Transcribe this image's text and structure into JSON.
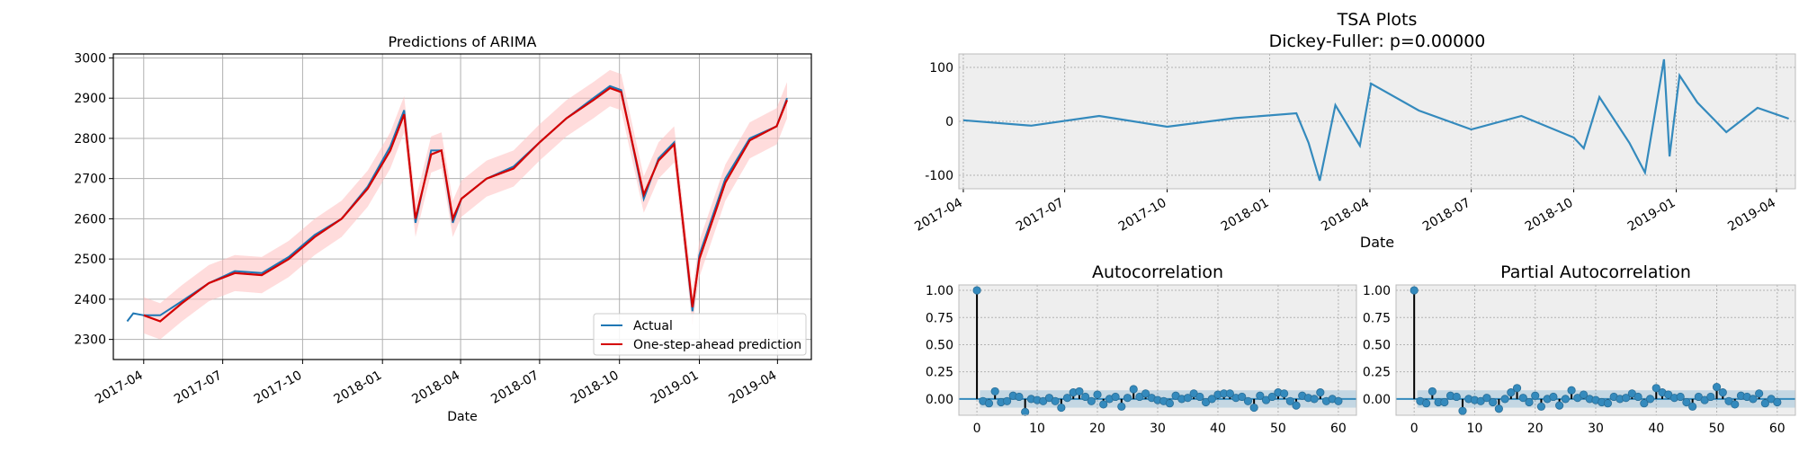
{
  "chart_data": [
    {
      "id": "arima",
      "type": "line",
      "title": "Predictions of ARIMA",
      "xlabel": "Date",
      "ylabel": "",
      "xlim": [
        "2017-02-25",
        "2019-05-10"
      ],
      "ylim": [
        2250,
        3010
      ],
      "grid": true,
      "legend": "lower-right",
      "x_ticks": [
        "2017-04-01",
        "2017-07-01",
        "2017-10-01",
        "2018-01-01",
        "2018-04-01",
        "2018-07-01",
        "2018-10-01",
        "2019-01-01",
        "2019-04-01"
      ],
      "x_tick_labels": [
        "2017-04",
        "2017-07",
        "2017-10",
        "2018-01",
        "2018-04",
        "2018-07",
        "2018-10",
        "2019-01",
        "2019-04"
      ],
      "y_ticks": [
        2300,
        2400,
        2500,
        2600,
        2700,
        2800,
        2900,
        3000
      ],
      "series": [
        {
          "name": "Actual",
          "color": "#1f77b4",
          "x": [
            "2017-03-13",
            "2017-03-20",
            "2017-04-01",
            "2017-04-20",
            "2017-05-15",
            "2017-06-15",
            "2017-07-15",
            "2017-08-15",
            "2017-09-15",
            "2017-10-15",
            "2017-11-15",
            "2017-12-15",
            "2018-01-10",
            "2018-01-26",
            "2018-02-08",
            "2018-02-26",
            "2018-03-10",
            "2018-03-23",
            "2018-04-02",
            "2018-05-01",
            "2018-06-01",
            "2018-07-01",
            "2018-08-01",
            "2018-09-01",
            "2018-09-20",
            "2018-10-03",
            "2018-10-29",
            "2018-11-15",
            "2018-12-03",
            "2018-12-24",
            "2019-01-01",
            "2019-01-31",
            "2019-02-28",
            "2019-03-31",
            "2019-04-12"
          ],
          "y": [
            2345,
            2365,
            2360,
            2360,
            2395,
            2440,
            2470,
            2465,
            2505,
            2560,
            2600,
            2680,
            2780,
            2870,
            2590,
            2770,
            2770,
            2590,
            2650,
            2700,
            2730,
            2790,
            2850,
            2900,
            2930,
            2920,
            2650,
            2750,
            2790,
            2370,
            2510,
            2700,
            2800,
            2830,
            2900
          ]
        },
        {
          "name": "One-step-ahead prediction",
          "color": "#d40000",
          "x": [
            "2017-04-01",
            "2017-04-20",
            "2017-05-15",
            "2017-06-15",
            "2017-07-15",
            "2017-08-15",
            "2017-09-15",
            "2017-10-15",
            "2017-11-15",
            "2017-12-15",
            "2018-01-10",
            "2018-01-26",
            "2018-02-08",
            "2018-02-26",
            "2018-03-10",
            "2018-03-23",
            "2018-04-02",
            "2018-05-01",
            "2018-06-01",
            "2018-07-01",
            "2018-08-01",
            "2018-09-01",
            "2018-09-20",
            "2018-10-03",
            "2018-10-29",
            "2018-11-15",
            "2018-12-03",
            "2018-12-24",
            "2019-01-01",
            "2019-01-31",
            "2019-02-28",
            "2019-03-31",
            "2019-04-12"
          ],
          "y": [
            2360,
            2345,
            2390,
            2440,
            2465,
            2460,
            2500,
            2555,
            2600,
            2675,
            2770,
            2860,
            2600,
            2760,
            2770,
            2600,
            2650,
            2700,
            2725,
            2790,
            2850,
            2895,
            2925,
            2915,
            2660,
            2745,
            2785,
            2380,
            2500,
            2690,
            2795,
            2830,
            2895
          ]
        }
      ],
      "ci_band": {
        "color": "#ffc0c0",
        "half_width": 45
      }
    },
    {
      "id": "tsa",
      "type": "line",
      "title": "TSA Plots",
      "subtitle": "Dickey-Fuller: p=0.00000",
      "xlabel": "Date",
      "xlim": [
        "2017-03-28",
        "2019-04-18"
      ],
      "ylim": [
        -125,
        125
      ],
      "grid": true,
      "x_ticks": [
        "2017-04-01",
        "2017-07-01",
        "2017-10-01",
        "2018-01-01",
        "2018-04-01",
        "2018-07-01",
        "2018-10-01",
        "2019-01-01",
        "2019-04-01"
      ],
      "x_tick_labels": [
        "2017-04",
        "2017-07",
        "2017-10",
        "2018-01",
        "2018-04",
        "2018-07",
        "2018-10",
        "2019-01",
        "2019-04"
      ],
      "y_ticks": [
        -100,
        0,
        100
      ],
      "series": [
        {
          "color": "#348abd",
          "x": [
            "2017-04-01",
            "2017-06-01",
            "2017-08-01",
            "2017-10-01",
            "2017-12-01",
            "2018-01-25",
            "2018-02-05",
            "2018-02-15",
            "2018-03-01",
            "2018-03-23",
            "2018-04-02",
            "2018-05-15",
            "2018-07-01",
            "2018-08-15",
            "2018-10-01",
            "2018-10-10",
            "2018-10-24",
            "2018-11-20",
            "2018-12-04",
            "2018-12-21",
            "2018-12-26",
            "2019-01-04",
            "2019-01-20",
            "2019-02-15",
            "2019-03-15",
            "2019-04-12"
          ],
          "y": [
            2,
            -8,
            10,
            -10,
            6,
            15,
            -40,
            -110,
            30,
            -45,
            70,
            20,
            -15,
            10,
            -30,
            -50,
            45,
            -40,
            -95,
            115,
            -65,
            85,
            35,
            -20,
            25,
            5
          ]
        }
      ]
    },
    {
      "id": "acf",
      "type": "stem",
      "title": "Autocorrelation",
      "xlim": [
        -3,
        63
      ],
      "ylim": [
        -0.15,
        1.05
      ],
      "grid": true,
      "x_ticks": [
        0,
        10,
        20,
        30,
        40,
        50,
        60
      ],
      "y_ticks": [
        0.0,
        0.25,
        0.5,
        0.75,
        1.0
      ],
      "y_tick_labels": [
        "0.00",
        "0.25",
        "0.50",
        "0.75",
        "1.00"
      ],
      "confidence": 0.08,
      "lags": [
        0,
        1,
        2,
        3,
        4,
        5,
        6,
        7,
        8,
        9,
        10,
        11,
        12,
        13,
        14,
        15,
        16,
        17,
        18,
        19,
        20,
        21,
        22,
        23,
        24,
        25,
        26,
        27,
        28,
        29,
        30,
        31,
        32,
        33,
        34,
        35,
        36,
        37,
        38,
        39,
        40,
        41,
        42,
        43,
        44,
        45,
        46,
        47,
        48,
        49,
        50,
        51,
        52,
        53,
        54,
        55,
        56,
        57,
        58,
        59,
        60
      ],
      "values": [
        1.0,
        -0.02,
        -0.04,
        0.07,
        -0.03,
        -0.02,
        0.03,
        0.02,
        -0.12,
        0.0,
        -0.01,
        -0.02,
        0.01,
        -0.02,
        -0.08,
        0.01,
        0.06,
        0.07,
        0.02,
        -0.02,
        0.04,
        -0.05,
        0.0,
        0.02,
        -0.07,
        0.01,
        0.09,
        0.02,
        0.05,
        0.01,
        -0.01,
        -0.02,
        -0.04,
        0.03,
        0.0,
        0.01,
        0.05,
        0.02,
        -0.03,
        0.0,
        0.04,
        0.05,
        0.05,
        0.01,
        0.02,
        -0.02,
        -0.08,
        0.03,
        -0.01,
        0.02,
        0.06,
        0.05,
        -0.02,
        -0.06,
        0.03,
        0.01,
        0.0,
        0.06,
        -0.02,
        0.0,
        -0.02
      ]
    },
    {
      "id": "pacf",
      "type": "stem",
      "title": "Partial Autocorrelation",
      "xlim": [
        -3,
        63
      ],
      "ylim": [
        -0.15,
        1.05
      ],
      "grid": true,
      "x_ticks": [
        0,
        10,
        20,
        30,
        40,
        50,
        60
      ],
      "y_ticks": [
        0.0,
        0.25,
        0.5,
        0.75,
        1.0
      ],
      "y_tick_labels": [
        "0.00",
        "0.25",
        "0.50",
        "0.75",
        "1.00"
      ],
      "confidence": 0.08,
      "lags": [
        0,
        1,
        2,
        3,
        4,
        5,
        6,
        7,
        8,
        9,
        10,
        11,
        12,
        13,
        14,
        15,
        16,
        17,
        18,
        19,
        20,
        21,
        22,
        23,
        24,
        25,
        26,
        27,
        28,
        29,
        30,
        31,
        32,
        33,
        34,
        35,
        36,
        37,
        38,
        39,
        40,
        41,
        42,
        43,
        44,
        45,
        46,
        47,
        48,
        49,
        50,
        51,
        52,
        53,
        54,
        55,
        56,
        57,
        58,
        59,
        60
      ],
      "values": [
        1.0,
        -0.02,
        -0.04,
        0.07,
        -0.03,
        -0.03,
        0.03,
        0.02,
        -0.11,
        0.0,
        -0.01,
        -0.02,
        0.01,
        -0.03,
        -0.09,
        0.0,
        0.06,
        0.1,
        0.01,
        -0.03,
        0.03,
        -0.07,
        0.0,
        0.02,
        -0.06,
        0.0,
        0.08,
        0.01,
        0.04,
        0.0,
        -0.01,
        -0.03,
        -0.04,
        0.02,
        0.0,
        0.01,
        0.05,
        0.02,
        -0.04,
        0.0,
        0.1,
        0.06,
        0.04,
        0.01,
        0.02,
        -0.03,
        -0.07,
        0.02,
        -0.01,
        0.02,
        0.11,
        0.06,
        -0.02,
        -0.05,
        0.03,
        0.02,
        0.0,
        0.05,
        -0.04,
        0.0,
        -0.03
      ]
    }
  ]
}
